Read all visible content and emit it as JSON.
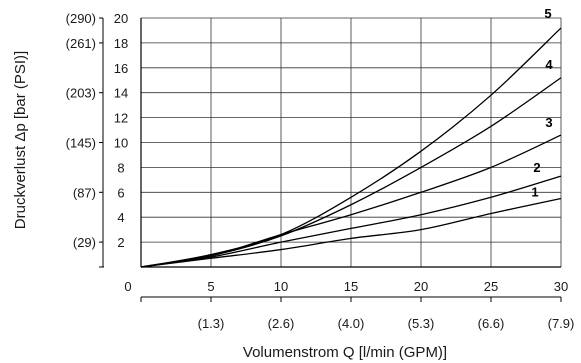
{
  "chart_data": {
    "type": "line",
    "title": "",
    "xlabel": "Volumenstrom Q [l/min (GPM)]",
    "ylabel": "Druckverlust Δp [bar (PSI)]",
    "xlim": [
      0,
      30
    ],
    "ylim": [
      0,
      20
    ],
    "grid": true,
    "x_ticks": [
      0,
      5,
      10,
      15,
      20,
      25,
      30
    ],
    "x_secondary_ticks": [
      {
        "x": 5,
        "label": "(1.3)"
      },
      {
        "x": 10,
        "label": "(2.6)"
      },
      {
        "x": 15,
        "label": "(4.0)"
      },
      {
        "x": 20,
        "label": "(5.3)"
      },
      {
        "x": 25,
        "label": "(6.6)"
      },
      {
        "x": 30,
        "label": "(7.9)"
      }
    ],
    "y_ticks": [
      2,
      4,
      6,
      8,
      10,
      12,
      14,
      16,
      18,
      20
    ],
    "y_secondary_ticks": [
      {
        "y": 2,
        "label": "(29)"
      },
      {
        "y": 6,
        "label": "(87)"
      },
      {
        "y": 10,
        "label": "(145)"
      },
      {
        "y": 14,
        "label": "(203)"
      },
      {
        "y": 18,
        "label": "(261)"
      },
      {
        "y": 20,
        "label": "(290)"
      }
    ],
    "x": [
      0,
      5,
      10,
      15,
      20,
      25,
      30
    ],
    "series": [
      {
        "name": "1",
        "values": [
          0,
          0.7,
          1.4,
          2.3,
          3.0,
          4.3,
          5.5
        ]
      },
      {
        "name": "2",
        "values": [
          0,
          0.8,
          2.0,
          3.1,
          4.2,
          5.6,
          7.3
        ]
      },
      {
        "name": "3",
        "values": [
          0,
          0.9,
          2.6,
          4.2,
          6.0,
          8.0,
          10.6
        ]
      },
      {
        "name": "4",
        "values": [
          0,
          0.9,
          2.5,
          5.0,
          8.0,
          11.3,
          15.2
        ]
      },
      {
        "name": "5",
        "values": [
          0,
          1.0,
          2.6,
          5.6,
          9.3,
          13.8,
          19.2
        ]
      }
    ]
  }
}
